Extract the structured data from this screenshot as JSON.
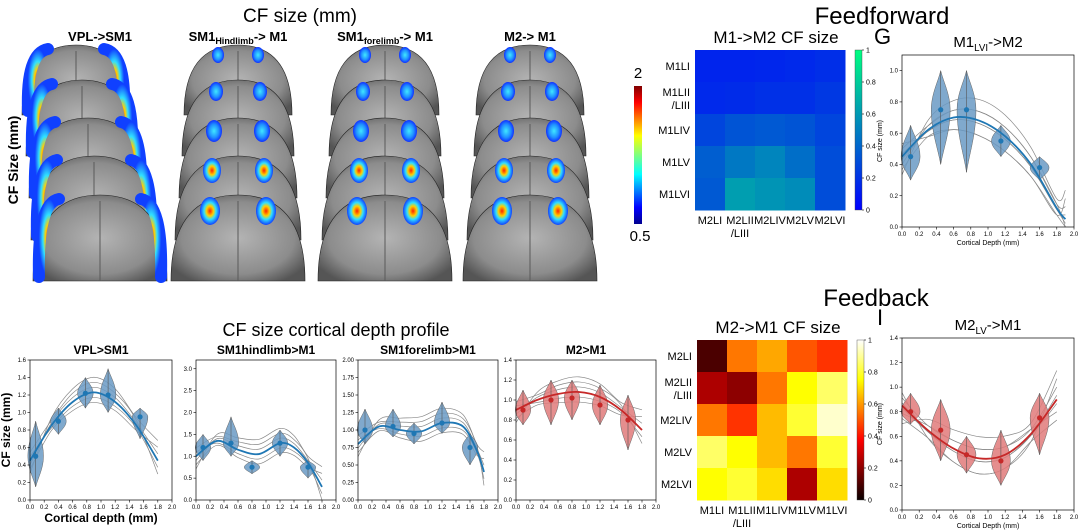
{
  "titles": {
    "cf_size_mm": "CF size (mm)",
    "feedforward": "Feedforward",
    "feedback": "Feedback",
    "depth_profile": "CF size cortical depth profile",
    "cf_size_axis": "CF Size (mm)"
  },
  "panel_letters": {
    "g": "G",
    "i": "I"
  },
  "brain_columns": [
    {
      "label": "VPL->SM1",
      "base": "VPL->SM1",
      "sub": "",
      "suffix": ""
    },
    {
      "label": "SM1Hindlimb-> M1",
      "base": "SM1",
      "sub": "Hindlimb",
      "suffix": "-> M1"
    },
    {
      "label": "SM1forelimb-> M1",
      "base": "SM1",
      "sub": "forelimb",
      "suffix": "-> M1"
    },
    {
      "label": "M2-> M1",
      "base": "M2-> M1",
      "sub": "",
      "suffix": ""
    }
  ],
  "colorbar_cf": {
    "max_label": "2",
    "min_label": "0.5"
  },
  "colors": {
    "blue_violin": "#6a9ac4",
    "blue_line": "#1f77b4",
    "red_violin": "#e07a7a",
    "red_line": "#c62828",
    "gray_fit": "#888888"
  },
  "chart_data": [
    {
      "type": "heatmap",
      "title": "M1->M2 CF size",
      "colormap": "winter",
      "rows": [
        "M1LI",
        "M1LII/LIII",
        "M1LIV",
        "M1LV",
        "M1LVI"
      ],
      "row_labels": [
        [
          "M1LI"
        ],
        [
          "M1LII",
          "/LIII"
        ],
        [
          "M1LIV"
        ],
        [
          "M1LV"
        ],
        [
          "M1LVI"
        ]
      ],
      "columns": [
        "M2LI",
        "M2LII/LIII",
        "M2LIV",
        "M2LV",
        "M2LVI"
      ],
      "column_labels": [
        [
          "M2LI"
        ],
        [
          "M2LII",
          "/LIII"
        ],
        [
          "M2LIV"
        ],
        [
          "M2LV"
        ],
        [
          "M2LVI"
        ]
      ],
      "values": [
        [
          0.14,
          0.14,
          0.15,
          0.16,
          0.18
        ],
        [
          0.16,
          0.17,
          0.19,
          0.19,
          0.22
        ],
        [
          0.27,
          0.33,
          0.35,
          0.33,
          0.27
        ],
        [
          0.37,
          0.47,
          0.52,
          0.43,
          0.3
        ],
        [
          0.35,
          0.62,
          0.58,
          0.55,
          0.3
        ]
      ],
      "colorbar": {
        "range": [
          0,
          1
        ],
        "ticks": [
          "0",
          "0.2",
          "0.4",
          "0.6",
          "0.8",
          "1"
        ]
      }
    },
    {
      "type": "heatmap",
      "title": "M2->M1 CF size",
      "colormap": "hot",
      "rows": [
        "M2LI",
        "M2LII/LIII",
        "M2LIV",
        "M2LV",
        "M2LVI"
      ],
      "row_labels": [
        [
          "M2LI"
        ],
        [
          "M2LII",
          "/LIII"
        ],
        [
          "M2LIV"
        ],
        [
          "M2LV"
        ],
        [
          "M2LVI"
        ]
      ],
      "columns": [
        "M1LI",
        "M1LII/LIII",
        "M1LIV",
        "M1LV",
        "M1LVI"
      ],
      "column_labels": [
        [
          "M1LI"
        ],
        [
          "M1LII",
          "/LIII"
        ],
        [
          "M1LIV"
        ],
        [
          "M1LV"
        ],
        [
          "M1LVI"
        ]
      ],
      "values": [
        [
          0.1,
          0.55,
          0.62,
          0.5,
          0.45
        ],
        [
          0.25,
          0.2,
          0.55,
          0.75,
          0.85
        ],
        [
          0.55,
          0.45,
          0.65,
          0.8,
          0.95
        ],
        [
          0.85,
          0.75,
          0.65,
          0.55,
          0.8
        ],
        [
          0.75,
          0.8,
          0.7,
          0.25,
          0.7
        ]
      ],
      "colorbar": {
        "range": [
          0,
          1
        ],
        "ticks": [
          "0",
          "0.2",
          "0.4",
          "0.6",
          "0.8",
          "1"
        ]
      }
    },
    {
      "type": "violin",
      "title": "VPL>SM1",
      "xlabel": "Cortical depth (mm)",
      "ylabel": "CF size (mm)",
      "xlim": [
        0,
        2.0
      ],
      "ylim": [
        0,
        1.6
      ],
      "xticks": [
        0.0,
        0.2,
        0.4,
        0.6,
        0.8,
        1.0,
        1.2,
        1.4,
        1.6,
        1.8,
        2.0
      ],
      "yticks": [
        0.0,
        0.2,
        0.4,
        0.6,
        0.8,
        1.0,
        1.2,
        1.4,
        1.6
      ],
      "positions": [
        0.08,
        0.4,
        0.78,
        1.1,
        1.55
      ],
      "medians": [
        0.5,
        0.9,
        1.22,
        1.2,
        0.95
      ],
      "ranges": [
        [
          0.15,
          0.9
        ],
        [
          0.75,
          1.05
        ],
        [
          1.05,
          1.4
        ],
        [
          1.0,
          1.5
        ],
        [
          0.7,
          1.05
        ]
      ],
      "fit": [
        [
          0.0,
          0.45
        ],
        [
          0.3,
          0.85
        ],
        [
          0.6,
          1.12
        ],
        [
          0.9,
          1.23
        ],
        [
          1.2,
          1.12
        ],
        [
          1.5,
          0.85
        ],
        [
          1.8,
          0.45
        ]
      ],
      "extra_fits": 6,
      "color": "blue",
      "tick_decimals": 1
    },
    {
      "type": "violin",
      "title": "SM1hindlimb>M1",
      "xlim": [
        0,
        2.0
      ],
      "ylim": [
        0,
        3.2
      ],
      "xticks": [
        0.0,
        0.2,
        0.4,
        0.6,
        0.8,
        1.0,
        1.2,
        1.4,
        1.6,
        1.8,
        2.0
      ],
      "yticks": [
        0.0,
        0.5,
        1.0,
        1.5,
        2.0,
        2.5,
        3.0
      ],
      "positions": [
        0.1,
        0.5,
        0.8,
        1.2,
        1.6
      ],
      "medians": [
        1.2,
        1.3,
        0.75,
        1.3,
        0.75
      ],
      "ranges": [
        [
          0.9,
          1.5
        ],
        [
          1.0,
          1.9
        ],
        [
          0.6,
          0.9
        ],
        [
          1.0,
          1.6
        ],
        [
          0.5,
          0.9
        ]
      ],
      "fit": [
        [
          0.0,
          1.0
        ],
        [
          0.3,
          1.35
        ],
        [
          0.6,
          1.15
        ],
        [
          0.9,
          1.05
        ],
        [
          1.2,
          1.3
        ],
        [
          1.4,
          1.2
        ],
        [
          1.6,
          0.85
        ],
        [
          1.8,
          0.3
        ]
      ],
      "extra_fits": 6,
      "color": "blue",
      "tick_decimals": 1
    },
    {
      "type": "violin",
      "title": "SM1forelimb>M1",
      "xlim": [
        0,
        2.0
      ],
      "ylim": [
        0,
        2.0
      ],
      "xticks": [
        0.0,
        0.2,
        0.4,
        0.6,
        0.8,
        1.0,
        1.2,
        1.4,
        1.6,
        1.8,
        2.0
      ],
      "yticks": [
        0.0,
        0.25,
        0.5,
        0.75,
        1.0,
        1.25,
        1.5,
        1.75,
        2.0
      ],
      "positions": [
        0.1,
        0.5,
        0.8,
        1.2,
        1.6
      ],
      "medians": [
        1.0,
        1.05,
        0.95,
        1.1,
        0.75
      ],
      "ranges": [
        [
          0.8,
          1.3
        ],
        [
          0.9,
          1.3
        ],
        [
          0.8,
          1.1
        ],
        [
          0.95,
          1.4
        ],
        [
          0.5,
          0.95
        ]
      ],
      "fit": [
        [
          0.0,
          0.8
        ],
        [
          0.3,
          1.05
        ],
        [
          0.6,
          1.0
        ],
        [
          0.9,
          0.98
        ],
        [
          1.2,
          1.1
        ],
        [
          1.5,
          1.05
        ],
        [
          1.7,
          0.7
        ],
        [
          1.8,
          0.4
        ]
      ],
      "extra_fits": 6,
      "color": "blue",
      "tick_decimals": 2
    },
    {
      "type": "violin",
      "title": "M2>M1",
      "xlim": [
        0,
        2.0
      ],
      "ylim": [
        0,
        1.4
      ],
      "xticks": [
        0.0,
        0.2,
        0.4,
        0.6,
        0.8,
        1.0,
        1.2,
        1.4,
        1.6,
        1.8,
        2.0
      ],
      "yticks": [
        0.0,
        0.2,
        0.4,
        0.6,
        0.8,
        1.0,
        1.2,
        1.4
      ],
      "positions": [
        0.1,
        0.5,
        0.8,
        1.2,
        1.6
      ],
      "medians": [
        0.9,
        1.0,
        1.02,
        0.95,
        0.8
      ],
      "ranges": [
        [
          0.75,
          1.1
        ],
        [
          0.75,
          1.2
        ],
        [
          0.8,
          1.2
        ],
        [
          0.75,
          1.15
        ],
        [
          0.5,
          1.05
        ]
      ],
      "fit": [
        [
          0.0,
          0.9
        ],
        [
          0.3,
          1.0
        ],
        [
          0.6,
          1.06
        ],
        [
          0.9,
          1.08
        ],
        [
          1.2,
          1.03
        ],
        [
          1.5,
          0.9
        ],
        [
          1.8,
          0.7
        ]
      ],
      "extra_fits": 6,
      "color": "red",
      "tick_decimals": 1
    },
    {
      "type": "violin",
      "title": "M1LVI->M2",
      "title_base": "M1",
      "title_sub": "LVI",
      "title_suffix": "->M2",
      "xlabel": "Cortical Depth (mm)",
      "ylabel": "CF size (mm)",
      "xlim": [
        0,
        2.0
      ],
      "ylim": [
        0,
        1.1
      ],
      "xticks": [
        0.0,
        0.2,
        0.4,
        0.6,
        0.8,
        1.0,
        1.2,
        1.4,
        1.6,
        1.8,
        2.0
      ],
      "yticks": [
        0.0,
        0.2,
        0.4,
        0.6,
        0.8,
        1.0
      ],
      "positions": [
        0.1,
        0.45,
        0.75,
        1.15,
        1.6
      ],
      "medians": [
        0.45,
        0.75,
        0.75,
        0.55,
        0.38
      ],
      "ranges": [
        [
          0.3,
          0.65
        ],
        [
          0.4,
          1.0
        ],
        [
          0.35,
          1.0
        ],
        [
          0.45,
          0.65
        ],
        [
          0.3,
          0.45
        ]
      ],
      "fit": [
        [
          0.0,
          0.45
        ],
        [
          0.3,
          0.62
        ],
        [
          0.6,
          0.7
        ],
        [
          0.9,
          0.68
        ],
        [
          1.2,
          0.58
        ],
        [
          1.5,
          0.4
        ],
        [
          1.8,
          0.12
        ],
        [
          1.9,
          0.05
        ]
      ],
      "extra_fits": 7,
      "color": "blue",
      "tick_decimals": 1
    },
    {
      "type": "violin",
      "title": "M2LV->M1",
      "title_base": "M2",
      "title_sub": "LV",
      "title_suffix": "->M1",
      "xlabel": "Cortical Depth (mm)",
      "ylabel": "CF size (mm)",
      "xlim": [
        0,
        2.0
      ],
      "ylim": [
        0,
        1.4
      ],
      "xticks": [
        0.0,
        0.2,
        0.4,
        0.6,
        0.8,
        1.0,
        1.2,
        1.4,
        1.6,
        1.8,
        2.0
      ],
      "yticks": [
        0.0,
        0.2,
        0.4,
        0.6,
        0.8,
        1.0,
        1.2,
        1.4
      ],
      "positions": [
        0.1,
        0.45,
        0.75,
        1.15,
        1.6
      ],
      "medians": [
        0.8,
        0.65,
        0.45,
        0.4,
        0.75
      ],
      "ranges": [
        [
          0.7,
          0.95
        ],
        [
          0.4,
          0.9
        ],
        [
          0.3,
          0.6
        ],
        [
          0.2,
          0.65
        ],
        [
          0.45,
          0.95
        ]
      ],
      "fit": [
        [
          0.0,
          0.85
        ],
        [
          0.3,
          0.65
        ],
        [
          0.6,
          0.5
        ],
        [
          0.9,
          0.42
        ],
        [
          1.2,
          0.45
        ],
        [
          1.5,
          0.62
        ],
        [
          1.8,
          0.9
        ]
      ],
      "extra_fits": 7,
      "color": "red",
      "tick_decimals": 1
    }
  ]
}
